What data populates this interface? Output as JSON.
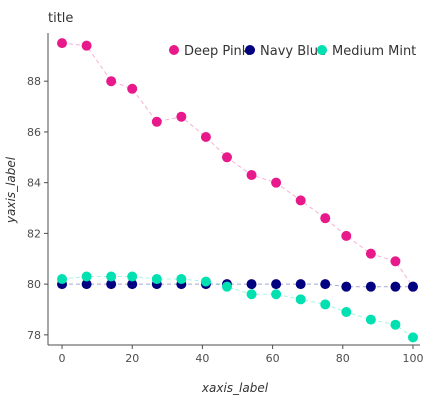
{
  "chart_data": {
    "type": "line",
    "title": "title",
    "xlabel": "xaxis_label",
    "ylabel": "yaxis_label",
    "xlim": [
      -4,
      102
    ],
    "ylim": [
      77.6,
      89.9
    ],
    "x_ticks": [
      0,
      20,
      40,
      60,
      80,
      100
    ],
    "y_ticks": [
      78,
      80,
      82,
      84,
      86,
      88
    ],
    "legend_position": "top",
    "grid": false,
    "series": [
      {
        "name": "Deep Pink",
        "color": "#e8198b",
        "x": [
          0,
          7,
          14,
          20,
          27,
          34,
          41,
          47,
          54,
          61,
          68,
          75,
          81,
          88,
          95,
          100
        ],
        "y": [
          89.5,
          89.4,
          88.0,
          87.7,
          86.4,
          86.6,
          85.8,
          85.0,
          84.3,
          84.0,
          83.3,
          82.6,
          81.9,
          81.2,
          80.9,
          79.9
        ]
      },
      {
        "name": "Navy Blue",
        "color": "#000080",
        "x": [
          0,
          7,
          14,
          20,
          27,
          34,
          41,
          47,
          54,
          61,
          68,
          75,
          81,
          88,
          95,
          100
        ],
        "y": [
          80.0,
          80.0,
          80.0,
          80.0,
          80.0,
          80.0,
          80.0,
          80.0,
          80.0,
          80.0,
          80.0,
          80.0,
          79.9,
          79.9,
          79.9,
          79.9
        ]
      },
      {
        "name": "Medium Mint",
        "color": "#00e0b0",
        "x": [
          0,
          7,
          14,
          20,
          27,
          34,
          41,
          47,
          54,
          61,
          68,
          75,
          81,
          88,
          95,
          100
        ],
        "y": [
          80.2,
          80.3,
          80.3,
          80.3,
          80.2,
          80.2,
          80.1,
          79.9,
          79.6,
          79.6,
          79.4,
          79.2,
          78.9,
          78.6,
          78.4,
          77.9
        ]
      }
    ]
  }
}
